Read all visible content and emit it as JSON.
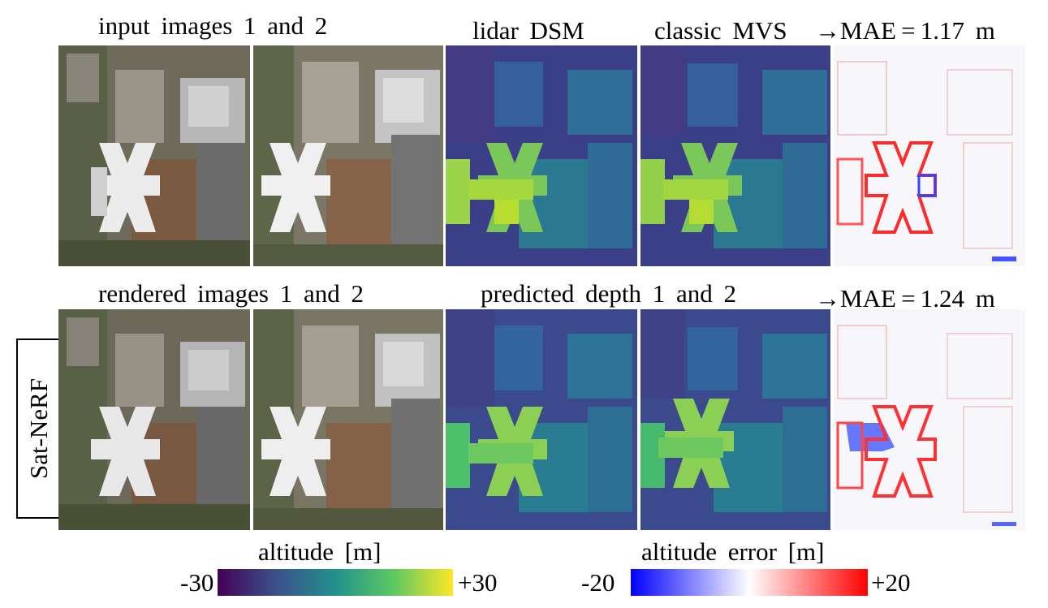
{
  "row1": {
    "input_label": "input images 1 and 2",
    "lidar_label": "lidar DSM",
    "mvs_label": "classic MVS",
    "mae_label": "→MAE = 1.17 m"
  },
  "row2": {
    "rendered_label": "rendered images 1 and 2",
    "depth_label": "predicted depth 1 and 2",
    "mae_label": "→MAE = 1.24 m"
  },
  "method_label": "Sat-NeRF",
  "colorbar_altitude": {
    "title": "altitude [m]",
    "min_label": "-30",
    "max_label": "+30",
    "colors": [
      "#440154",
      "#3b528b",
      "#21918c",
      "#5ec962",
      "#fde725"
    ]
  },
  "colorbar_error": {
    "title": "altitude error [m]",
    "min_label": "-20",
    "max_label": "+20",
    "colors": [
      "#0000ff",
      "#ffffff",
      "#ff0000"
    ]
  }
}
